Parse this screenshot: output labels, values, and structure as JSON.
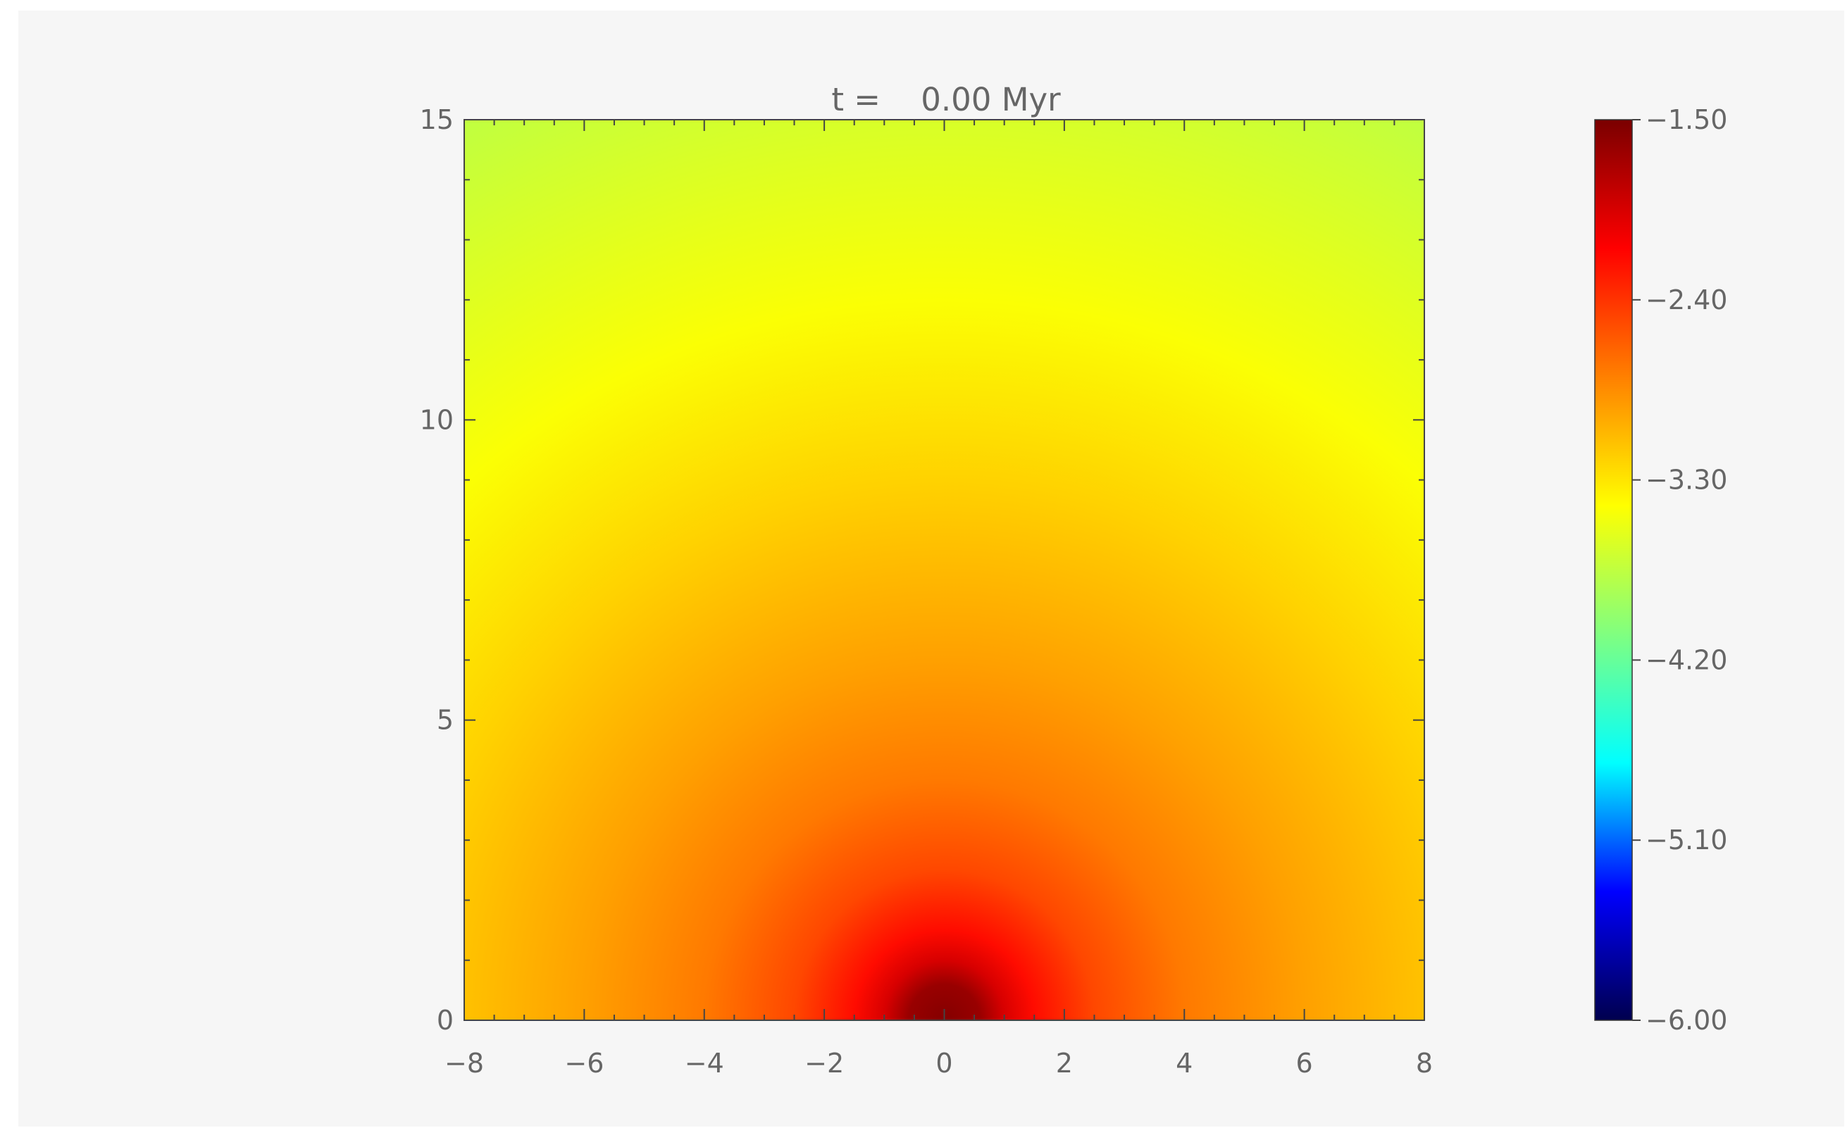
{
  "chart_data": {
    "type": "heatmap",
    "title": "t =    0.00 Myr",
    "xlabel": "",
    "ylabel": "",
    "xlim": [
      -8,
      8
    ],
    "ylim": [
      0,
      15
    ],
    "x_ticks": [
      "-8",
      "-6",
      "-4",
      "-2",
      "0",
      "2",
      "4",
      "6",
      "8"
    ],
    "y_ticks": [
      "0",
      "5",
      "10",
      "15"
    ],
    "field": {
      "description": "radially symmetric log-density field centered at origin",
      "center": [
        0,
        0
      ],
      "radial_profile": [
        {
          "r": 0.0,
          "value": -1.55
        },
        {
          "r": 0.6,
          "value": -1.65
        },
        {
          "r": 1.0,
          "value": -1.95
        },
        {
          "r": 1.5,
          "value": -2.2
        },
        {
          "r": 2.5,
          "value": -2.5
        },
        {
          "r": 4.0,
          "value": -2.75
        },
        {
          "r": 6.0,
          "value": -2.95
        },
        {
          "r": 9.0,
          "value": -3.2
        },
        {
          "r": 12.0,
          "value": -3.45
        },
        {
          "r": 17.0,
          "value": -3.75
        }
      ]
    },
    "colorbar": {
      "vmin": -6.0,
      "vmax": -1.5,
      "tick_labels": [
        "-1.50",
        "-2.40",
        "-3.30",
        "-4.20",
        "-5.10",
        "-6.00"
      ],
      "colormap": [
        "#00004e",
        "#0000ff",
        "#00ffff",
        "#80ff80",
        "#ffff00",
        "#ff8000",
        "#ff0000",
        "#7a0000"
      ]
    }
  }
}
